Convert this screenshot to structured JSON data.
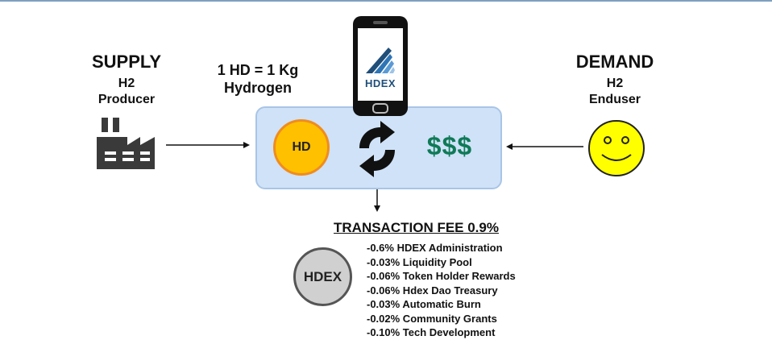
{
  "supply": {
    "title": "SUPPLY",
    "line1": "H2",
    "line2": "Producer"
  },
  "demand": {
    "title": "DEMAND",
    "line1": "H2",
    "line2": "Enduser"
  },
  "rate": {
    "line1": "1 HD = 1 Kg",
    "line2": "Hydrogen"
  },
  "exchange": {
    "token_label": "HD",
    "currency_label": "$$$"
  },
  "phone": {
    "app_logo_text": "HDEX"
  },
  "fee": {
    "title": "TRANSACTION FEE 0.9%",
    "coin_label": "HDEX",
    "items": [
      "-0.6% HDEX Administration",
      "-0.03% Liquidity Pool",
      "-0.06% Token Holder Rewards",
      "-0.06% Hdex Dao Treasury",
      "-0.03% Automatic Burn",
      "-0.02% Community Grants",
      "-0.10% Tech Development"
    ]
  },
  "colors": {
    "box_fill": "#cfe2f8",
    "coin_gold": "#ffc000",
    "dollar_green": "#0f7a57",
    "smiley_yellow": "#ffff00",
    "hdex_coin_gray": "#d0d0d0",
    "factory_dark": "#3a3a3a",
    "logo_blue": "#1f4e79"
  },
  "icons": {
    "producer": "factory-icon",
    "enduser": "smiley-face-icon",
    "exchange": "swap-arrows-icon",
    "device": "smartphone-icon"
  }
}
